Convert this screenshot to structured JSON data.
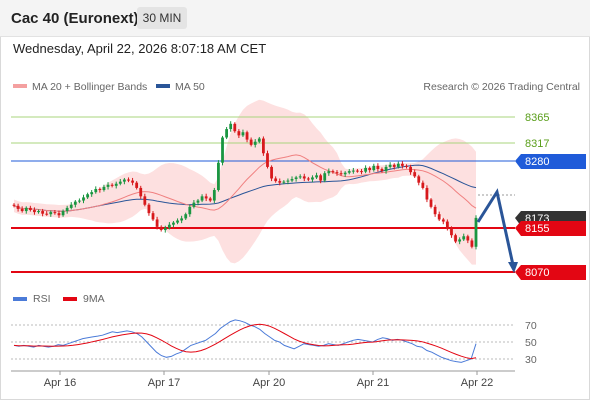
{
  "header": {
    "title": "Cac 40 (Euronext)",
    "timeframe": "30 MIN"
  },
  "datetime": "Wednesday, April 22, 2026 8:07:18 AM CET",
  "legend": {
    "ma20": "MA 20 + Bollinger Bands",
    "ma50": "MA 50",
    "copyright": "Research © 2026 Trading Central",
    "rsi": "RSI",
    "ma9": "9MA"
  },
  "levels": {
    "r2": "8365",
    "r1": "8317",
    "pivot": "8280",
    "last": "8173",
    "s1": "8155",
    "s2": "8070"
  },
  "rsi_ticks": [
    "70",
    "50",
    "30"
  ],
  "x_axis": [
    "Apr 16",
    "Apr 17",
    "Apr 20",
    "Apr 21",
    "Apr 22"
  ],
  "colors": {
    "resistance": "#8dc63f",
    "pivot": "#1f5bd9",
    "support": "#e30613",
    "last_price": "#333333",
    "ma20": "#f08080",
    "ma50": "#2a5598",
    "bollinger": "#fde0e0",
    "arrow": "#2a5598",
    "rsi": "#4b7bd8",
    "ma9": "#e30613"
  },
  "chart_data": {
    "type": "candlestick",
    "y_range": [
      8040,
      8390
    ],
    "close_prices": [
      8196,
      8190,
      8186,
      8192,
      8188,
      8184,
      8186,
      8181,
      8180,
      8184,
      8182,
      8178,
      8186,
      8192,
      8198,
      8204,
      8206,
      8212,
      8218,
      8222,
      8228,
      8226,
      8232,
      8236,
      8234,
      8238,
      8242,
      8246,
      8244,
      8240,
      8230,
      8214,
      8198,
      8182,
      8170,
      8156,
      8150,
      8154,
      8160,
      8164,
      8168,
      8172,
      8180,
      8194,
      8202,
      8206,
      8214,
      8210,
      8206,
      8226,
      8278,
      8326,
      8342,
      8352,
      8338,
      8330,
      8336,
      8322,
      8312,
      8318,
      8324,
      8296,
      8270,
      8248,
      8243,
      8240,
      8242,
      8244,
      8247,
      8250,
      8252,
      8248,
      8246,
      8250,
      8254,
      8244,
      8258,
      8262,
      8260,
      8258,
      8256,
      8259,
      8262,
      8263,
      8262,
      8261,
      8268,
      8264,
      8272,
      8266,
      8262,
      8270,
      8274,
      8270,
      8276,
      8272,
      8270,
      8260,
      8252,
      8240,
      8230,
      8208,
      8194,
      8180,
      8170,
      8166,
      8152,
      8140,
      8128,
      8132,
      8138,
      8130,
      8118,
      8173
    ],
    "rsi_values": [
      46,
      45,
      46,
      45,
      44,
      46,
      45,
      44,
      45,
      47,
      46,
      48,
      50,
      52,
      54,
      55,
      56,
      57,
      58,
      60,
      62,
      61,
      62,
      63,
      62,
      60,
      56,
      50,
      44,
      38,
      34,
      32,
      33,
      36,
      38,
      42,
      46,
      48,
      50,
      52,
      56,
      60,
      66,
      70,
      74,
      76,
      75,
      73,
      70,
      68,
      65,
      60,
      56,
      52,
      50,
      46,
      44,
      42,
      45,
      48,
      47,
      46,
      45,
      46,
      48,
      47,
      46,
      48,
      50,
      52,
      53,
      52,
      51,
      50,
      53,
      55,
      54,
      52,
      53,
      52,
      50,
      48,
      45,
      44,
      40,
      38,
      35,
      32,
      30,
      28,
      27,
      26,
      28,
      30,
      48
    ]
  }
}
